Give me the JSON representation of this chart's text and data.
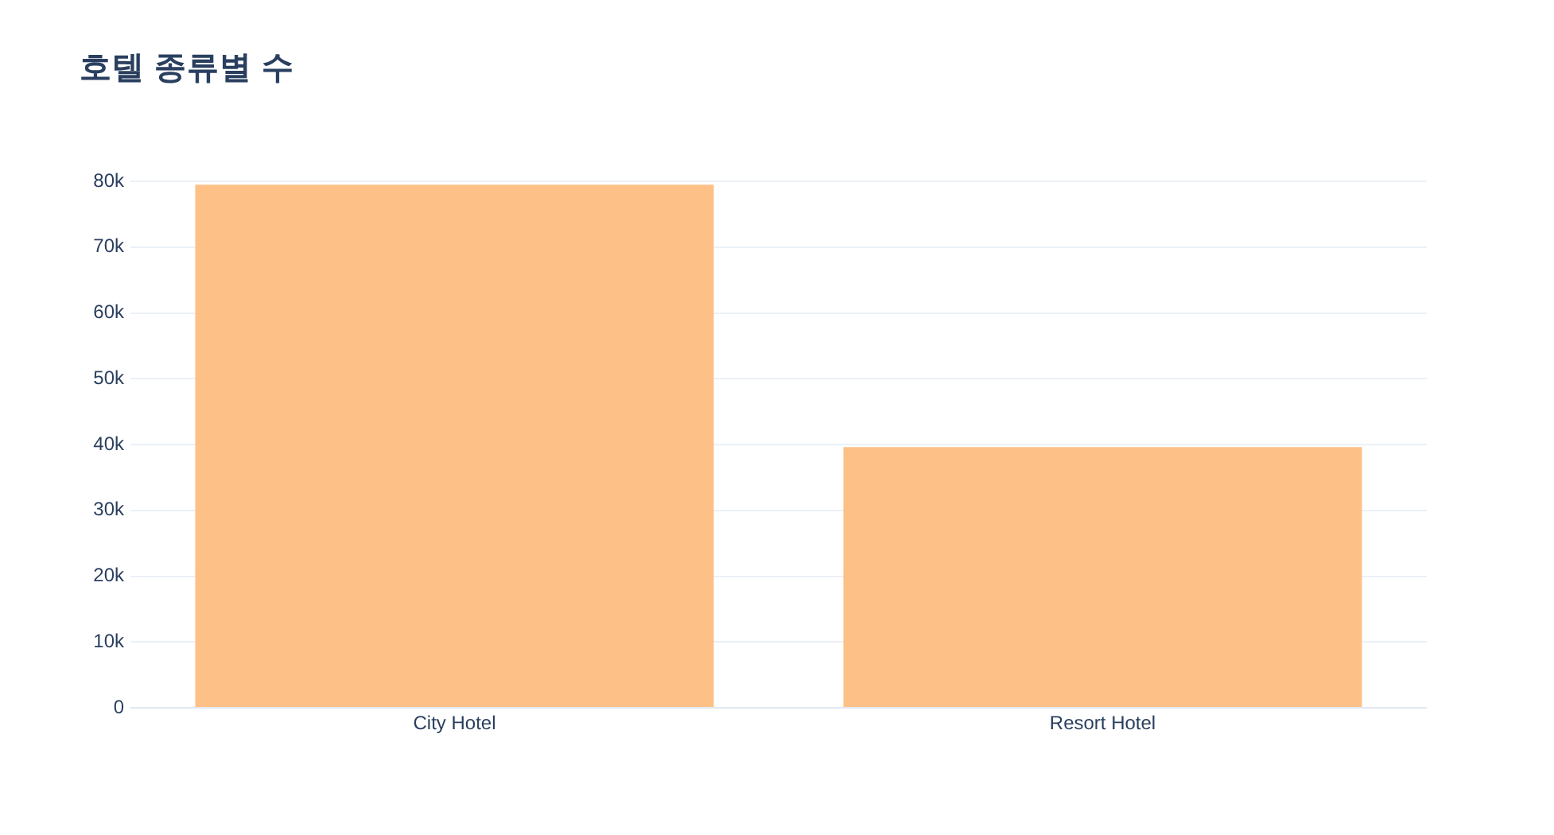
{
  "chart_data": {
    "type": "bar",
    "title": "호텔 종류별 수",
    "categories": [
      "City Hotel",
      "Resort Hotel"
    ],
    "values": [
      79500,
      39600
    ],
    "color": "#fdc086",
    "ylim": [
      0,
      80000
    ],
    "yticks": [
      0,
      {
        "value": 10000,
        "label": "10k"
      },
      {
        "value": 20000,
        "label": "20k"
      },
      {
        "value": 30000,
        "label": "30k"
      },
      {
        "value": 40000,
        "label": "40k"
      },
      {
        "value": 50000,
        "label": "50k"
      },
      {
        "value": 60000,
        "label": "60k"
      },
      {
        "value": 70000,
        "label": "70k"
      },
      {
        "value": 80000,
        "label": "80k"
      }
    ],
    "grid": "y"
  }
}
